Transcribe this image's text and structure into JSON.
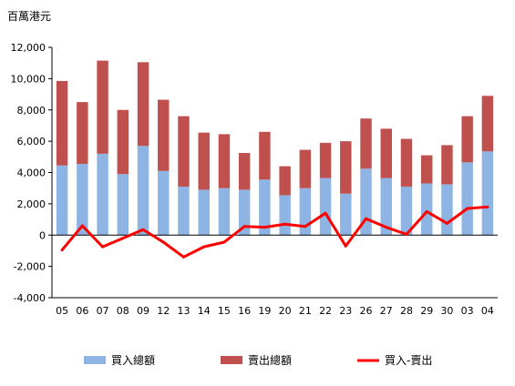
{
  "chart_data": {
    "type": "bar",
    "stacked": true,
    "unit_label": "百萬港元",
    "categories": [
      "05",
      "06",
      "07",
      "08",
      "09",
      "12",
      "13",
      "14",
      "15",
      "16",
      "19",
      "20",
      "21",
      "22",
      "23",
      "26",
      "27",
      "28",
      "29",
      "30",
      "03",
      "04"
    ],
    "series": [
      {
        "name": "買入總額",
        "type": "bar",
        "color": "#8db4e2",
        "values": [
          4450,
          4550,
          5200,
          3900,
          5700,
          4100,
          3100,
          2900,
          3000,
          2900,
          3550,
          2550,
          3000,
          3650,
          2650,
          4250,
          3650,
          3100,
          3300,
          3250,
          4650,
          5350
        ]
      },
      {
        "name": "賣出總額",
        "type": "bar",
        "color": "#c0504d",
        "values": [
          5400,
          3950,
          5950,
          4100,
          5350,
          4550,
          4500,
          3650,
          3450,
          2350,
          3050,
          1850,
          2450,
          2250,
          3350,
          3200,
          3150,
          3050,
          1800,
          2500,
          2950,
          3550
        ]
      },
      {
        "name": "買入-賣出",
        "type": "line",
        "color": "#ff0000",
        "values": [
          -950,
          600,
          -750,
          -200,
          350,
          -450,
          -1400,
          -750,
          -450,
          550,
          500,
          700,
          550,
          1400,
          -700,
          1050,
          500,
          50,
          1500,
          750,
          1700,
          1800
        ]
      }
    ],
    "ylim": [
      -4000,
      12000
    ],
    "yticks": [
      -4000,
      -2000,
      0,
      2000,
      4000,
      6000,
      8000,
      10000,
      12000
    ],
    "ytick_labels": [
      "-4,000",
      "-2,000",
      "0",
      "2,000",
      "4,000",
      "6,000",
      "8,000",
      "10,000",
      "12,000"
    ],
    "grid": false,
    "legend_position": "bottom"
  }
}
